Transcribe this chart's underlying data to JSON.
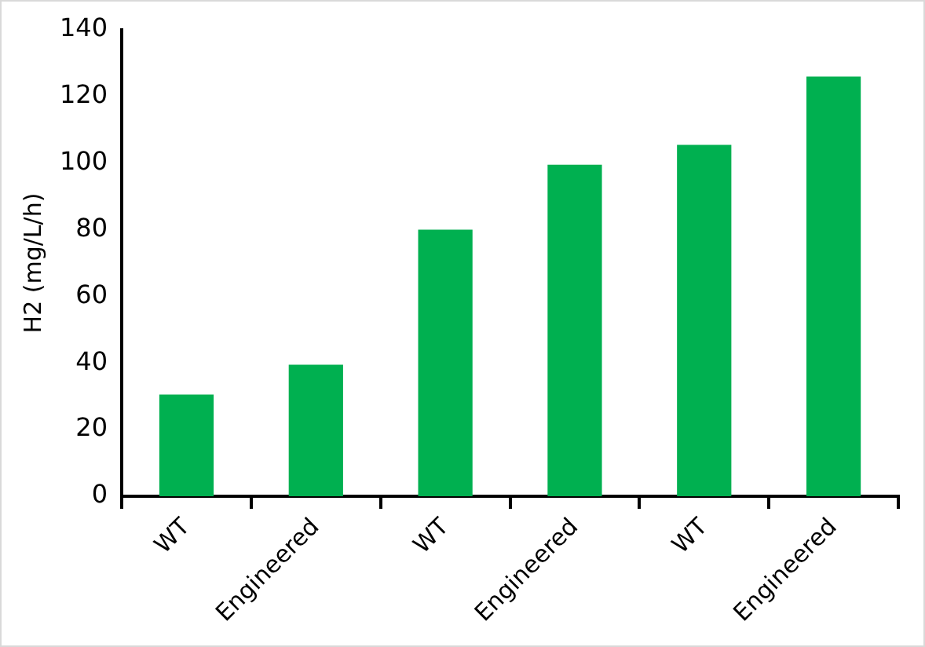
{
  "chart_data": {
    "type": "bar",
    "ylabel": "H2 (mg/L/h)",
    "categories": [
      "WT",
      "Engineered",
      "WT",
      "Engineered",
      "WT",
      "Engineered"
    ],
    "values": [
      30.5,
      39.5,
      80,
      99.5,
      105.5,
      126
    ],
    "color": "#00b050",
    "ylim": [
      0,
      140
    ],
    "yticks": [
      0,
      20,
      40,
      60,
      80,
      100,
      120,
      140
    ],
    "grid": false,
    "legend": false
  }
}
